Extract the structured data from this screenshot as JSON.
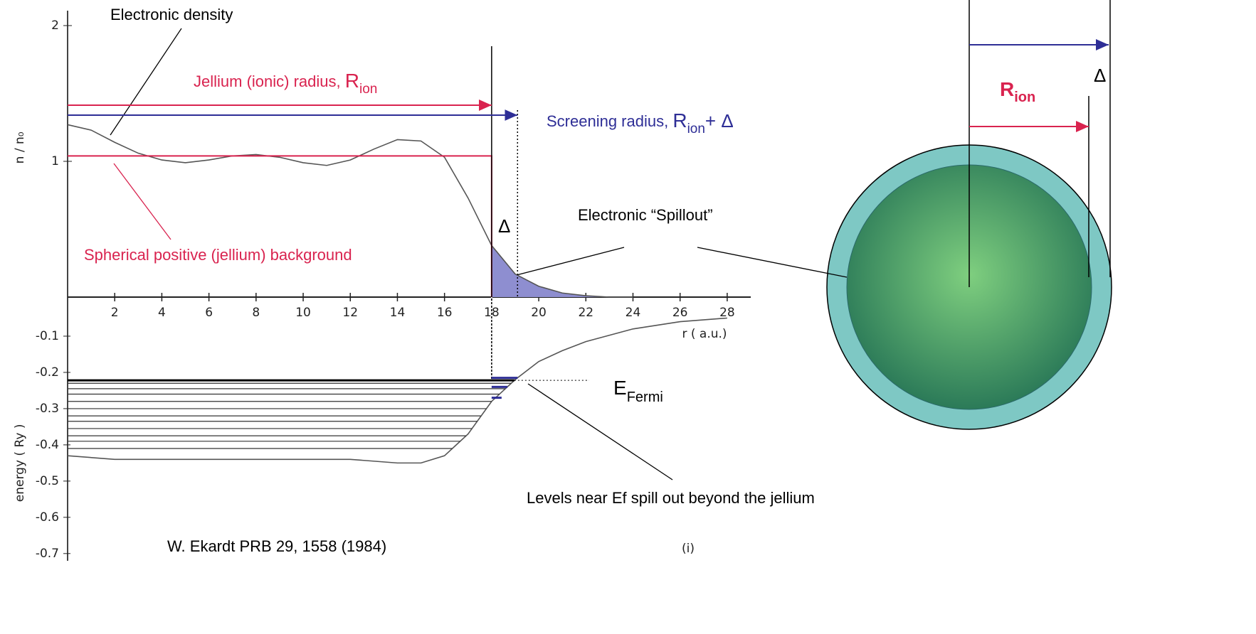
{
  "chart_data": [
    {
      "type": "line",
      "ylabel": "n / n₀",
      "xlabel": "r ( a.u.)",
      "xlim": [
        0,
        29
      ],
      "ylim": [
        0,
        2.11
      ],
      "xticks": [
        2,
        4,
        6,
        8,
        10,
        12,
        14,
        16,
        18,
        20,
        22,
        24,
        26,
        28
      ],
      "yticks": [
        1,
        2
      ],
      "series": [
        {
          "color": "#555555",
          "x": [
            0,
            1,
            2,
            3,
            4,
            5,
            6,
            7,
            8,
            9,
            10,
            11,
            12,
            13,
            14,
            15,
            16,
            17,
            18,
            19,
            20,
            21,
            22,
            23,
            24
          ],
          "values": [
            1.27,
            1.23,
            1.14,
            1.06,
            1.01,
            0.99,
            1.01,
            1.04,
            1.05,
            1.03,
            0.99,
            0.97,
            1.01,
            1.09,
            1.16,
            1.15,
            1.03,
            0.73,
            0.38,
            0.17,
            0.08,
            0.03,
            0.01,
            0,
            0
          ]
        },
        {
          "color": "#d9234f",
          "x": [
            0,
            18,
            18
          ],
          "values": [
            1.04,
            1.04,
            0
          ]
        }
      ],
      "spillout_color": "#8e8ed0",
      "jellium_radius": 18,
      "screening_radius": 19.1
    },
    {
      "type": "line",
      "ylabel": "energy ( Ry )",
      "xlim": [
        0,
        29
      ],
      "ylim": [
        -0.72,
        0
      ],
      "yticks": [
        -0.1,
        -0.2,
        -0.3,
        -0.4,
        -0.5,
        -0.6,
        -0.7
      ],
      "series": [
        {
          "color": "#555555",
          "x": [
            0,
            2,
            4,
            6,
            8,
            10,
            12,
            14,
            15,
            16,
            17,
            18,
            19,
            20,
            21,
            22,
            24,
            26,
            28
          ],
          "values": [
            -0.43,
            -0.44,
            -0.44,
            -0.44,
            -0.44,
            -0.44,
            -0.44,
            -0.45,
            -0.45,
            -0.43,
            -0.37,
            -0.28,
            -0.22,
            -0.17,
            -0.14,
            -0.115,
            -0.08,
            -0.06,
            -0.05
          ]
        }
      ],
      "fermi": -0.222,
      "levels": [
        -0.23,
        -0.245,
        -0.26,
        -0.28,
        -0.3,
        -0.32,
        -0.335,
        -0.355,
        -0.375,
        -0.39,
        -0.41
      ],
      "spill_levels": [
        -0.215,
        -0.24,
        -0.27
      ],
      "spill_color": "#2e2e96"
    }
  ],
  "labels": {
    "electronic_density": "Electronic density",
    "jellium_radius": {
      "text": "Jellium (ionic) radius, ",
      "symbol": "R",
      "sub": "ion"
    },
    "screening_radius": {
      "text": "Screening radius, ",
      "symbol": "R",
      "sub": "ion",
      "suffix": "+ Δ"
    },
    "delta": "Δ",
    "background": "Spherical positive (jellium) background",
    "spillout": "Electronic “Spillout”",
    "fermi": {
      "symbol": "E",
      "sub": "Fermi"
    },
    "levels_note": "Levels near Ef spill out beyond the jellium",
    "citation": "W. Ekardt PRB 29, 1558 (1984)",
    "panel": "(i)"
  },
  "sphere": {
    "radius_label": {
      "symbol": "R",
      "sub": "ion"
    },
    "delta": "Δ"
  }
}
